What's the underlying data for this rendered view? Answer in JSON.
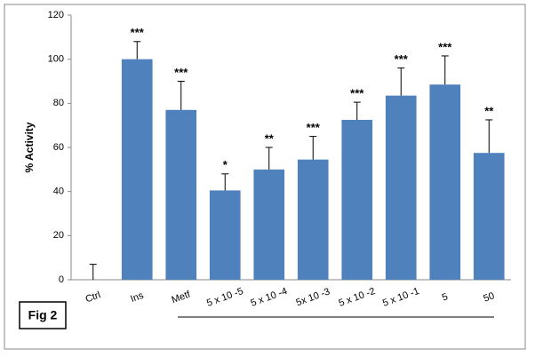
{
  "chart_data": {
    "type": "bar",
    "y_label": "% Activity",
    "categories": [
      "Ctrl",
      "Ins",
      "Metf",
      "5 x 10 -5",
      "5 x 10 -4",
      "5x 10 -3",
      "5 x 10 -2",
      "5 x 10 -1",
      "5",
      "50"
    ],
    "values": [
      0,
      100,
      77,
      40.5,
      50,
      54.5,
      72.5,
      83.5,
      88.5,
      57.5
    ],
    "errors": [
      7,
      8,
      13,
      7.5,
      10,
      10.5,
      8,
      12.5,
      13,
      15
    ],
    "annotations": [
      null,
      "***",
      "***",
      "*",
      "**",
      "***",
      "***",
      "***",
      "***",
      "**"
    ],
    "color": "#4f81bd",
    "ylim": [
      0,
      120
    ],
    "yticks": [
      0,
      20,
      40,
      60,
      80,
      100,
      120
    ],
    "grid": false
  },
  "figure_label": "Fig 2"
}
